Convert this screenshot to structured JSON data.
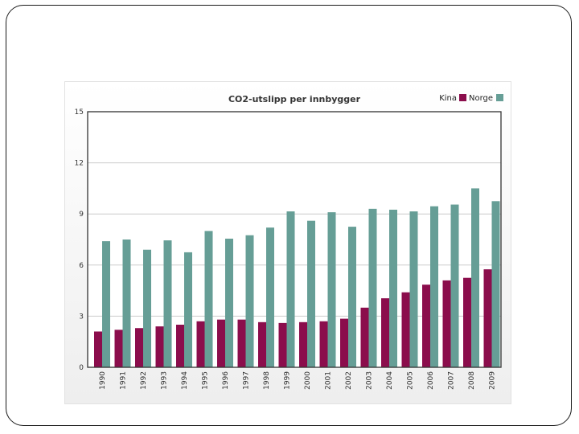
{
  "colors": {
    "kina": "#8b0d4c",
    "norge": "#669e96",
    "grid": "#cccccc",
    "frame": "#333333"
  },
  "chart_data": {
    "type": "bar",
    "title": "CO2-utslipp per innbygger",
    "xlabel": "",
    "ylabel": "",
    "ylim": [
      0,
      15
    ],
    "yticks": [
      "0",
      "3",
      "6",
      "9",
      "12",
      "15"
    ],
    "grid": true,
    "legend_position": "top-right",
    "categories": [
      "1990",
      "1991",
      "1992",
      "1993",
      "1994",
      "1995",
      "1996",
      "1997",
      "1998",
      "1999",
      "2000",
      "2001",
      "2002",
      "2003",
      "2004",
      "2005",
      "2006",
      "2007",
      "2008",
      "2009"
    ],
    "series": [
      {
        "name": "Kina",
        "values": [
          2.1,
          2.2,
          2.3,
          2.4,
          2.5,
          2.7,
          2.8,
          2.8,
          2.65,
          2.6,
          2.65,
          2.7,
          2.85,
          3.5,
          4.05,
          4.4,
          4.85,
          5.1,
          5.25,
          5.75
        ]
      },
      {
        "name": "Norge",
        "values": [
          7.4,
          7.5,
          6.9,
          7.45,
          6.75,
          8.0,
          7.55,
          7.75,
          8.2,
          9.15,
          8.6,
          9.1,
          8.25,
          9.3,
          9.25,
          9.15,
          9.45,
          9.55,
          10.5,
          9.75
        ]
      }
    ]
  }
}
